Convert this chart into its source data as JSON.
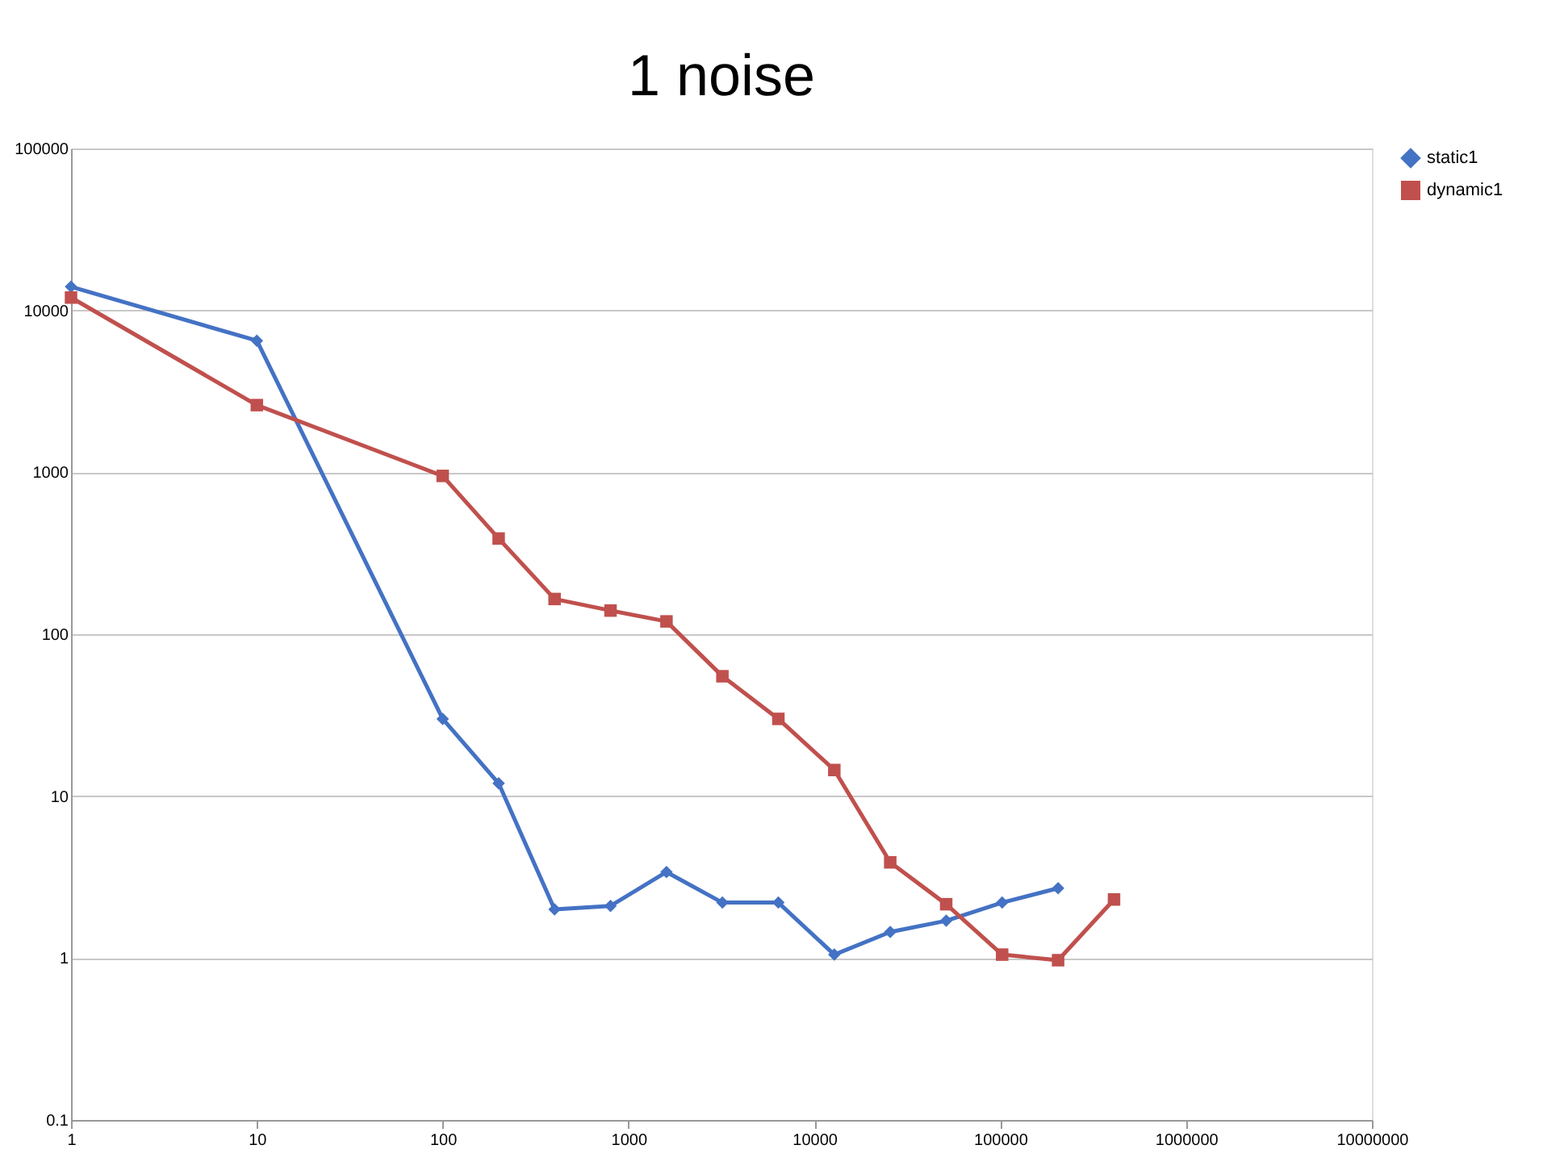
{
  "chart_data": {
    "type": "line",
    "title": "1 noise",
    "log": "xy",
    "xlim": [
      1,
      10000000
    ],
    "xticks": [
      1,
      10,
      100,
      1000,
      10000,
      100000,
      1000000,
      10000000
    ],
    "ylim": [
      0.1,
      100000
    ],
    "yticks": [
      0.1,
      1,
      10,
      100,
      1000,
      10000,
      100000
    ],
    "grid": "y",
    "legend": "right",
    "line_style": "solid",
    "series": [
      {
        "name": "static1",
        "color": "#4472c4",
        "marker": "diamond",
        "x": [
          1,
          10,
          100,
          200,
          400,
          800,
          1600,
          3200,
          6400,
          12800,
          25600,
          51200,
          102400,
          204800
        ],
        "values": [
          14000,
          6500,
          30,
          12,
          2,
          2.1,
          3.4,
          2.2,
          2.2,
          1.05,
          1.45,
          1.7,
          2.2,
          2.7
        ]
      },
      {
        "name": "dynamic1",
        "color": "#c0504d",
        "marker": "square",
        "x": [
          1,
          10,
          100,
          200,
          400,
          800,
          1600,
          3200,
          6400,
          12800,
          25600,
          51200,
          102400,
          204800,
          409600
        ],
        "values": [
          12000,
          2600,
          950,
          390,
          165,
          140,
          120,
          55,
          30,
          14.5,
          3.9,
          2.15,
          1.05,
          0.97,
          2.3
        ]
      }
    ]
  }
}
